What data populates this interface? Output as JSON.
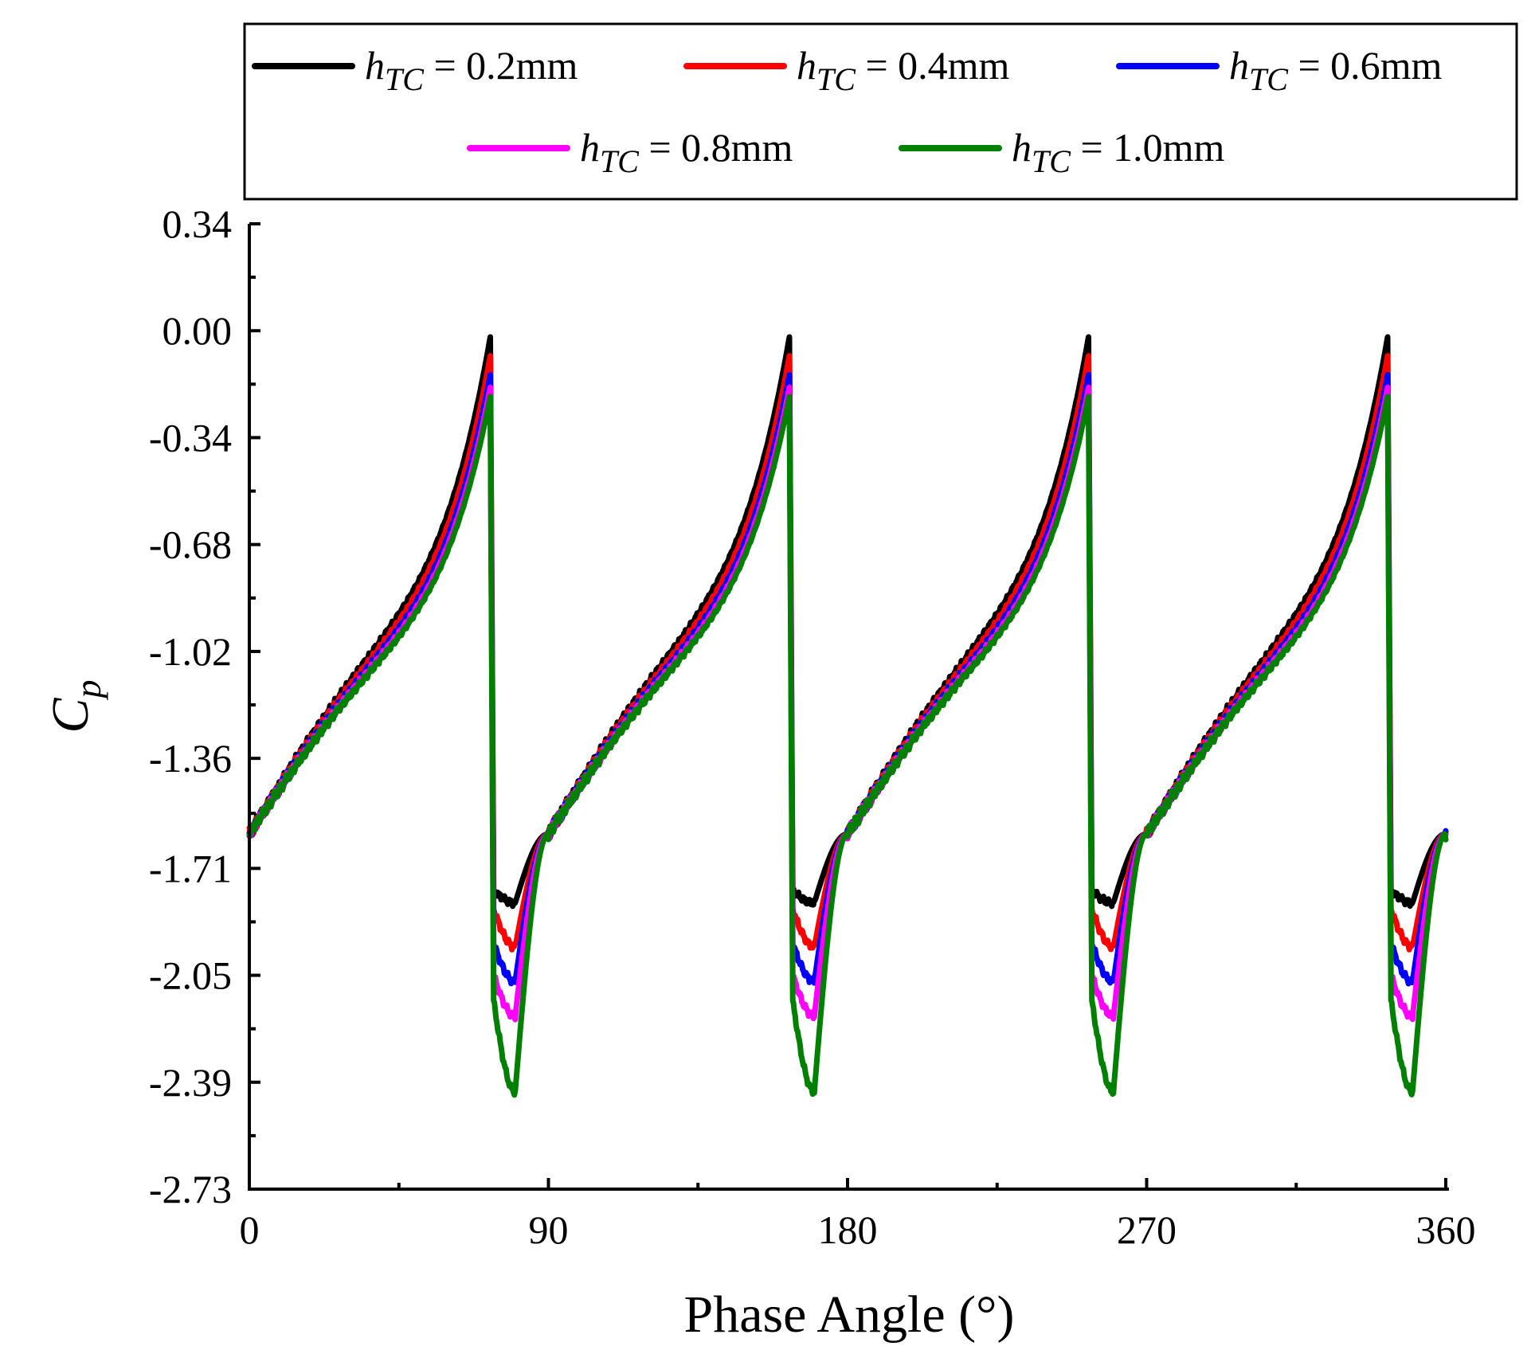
{
  "chart_data": {
    "type": "line",
    "title": "",
    "xlabel": "Phase Angle (°)",
    "ylabel_main": "C",
    "ylabel_sub": "p",
    "xlim": [
      0,
      360
    ],
    "ylim": [
      -2.73,
      0.34
    ],
    "xticks": [
      0,
      90,
      180,
      270,
      360
    ],
    "xtick_labels": [
      "0",
      "90",
      "180",
      "270",
      "360"
    ],
    "yticks": [
      0.34,
      0.0,
      -0.34,
      -0.68,
      -1.02,
      -1.36,
      -1.71,
      -2.05,
      -2.39,
      -2.73
    ],
    "ytick_labels": [
      "0.34",
      "0.00",
      "-0.34",
      "-0.68",
      "-1.02",
      "-1.36",
      "-1.71",
      "-2.05",
      "-2.39",
      "-2.73"
    ],
    "legend_position": "top",
    "cycles": {
      "period_deg": 90,
      "count": 4,
      "start_deg": 0,
      "rise_start_cp": -1.6,
      "peak_deg_in_cycle": 72.5,
      "drop_deg_in_cycle": 73.5,
      "trough_deg_in_cycle": 80,
      "recovery_deg_in_cycle": 90
    },
    "series": [
      {
        "name_var": "h",
        "name_sub": "TC",
        "name_rest": " = 0.2mm",
        "color": "#000000",
        "peak": -0.02,
        "trough": -1.82,
        "step": -1.78
      },
      {
        "name_var": "h",
        "name_sub": "TC",
        "name_rest": " = 0.4mm",
        "color": "#ff0000",
        "peak": -0.08,
        "trough": -1.96,
        "step": -1.84
      },
      {
        "name_var": "h",
        "name_sub": "TC",
        "name_rest": " = 0.6mm",
        "color": "#0000ff",
        "peak": -0.14,
        "trough": -2.07,
        "step": -1.95
      },
      {
        "name_var": "h",
        "name_sub": "TC",
        "name_rest": " = 0.8mm",
        "color": "#ff00ff",
        "peak": -0.18,
        "trough": -2.18,
        "step": -2.05
      },
      {
        "name_var": "h",
        "name_sub": "TC",
        "name_rest": " = 1.0mm",
        "color": "#008000",
        "peak": -0.21,
        "trough": -2.42,
        "step": -2.13
      }
    ]
  }
}
